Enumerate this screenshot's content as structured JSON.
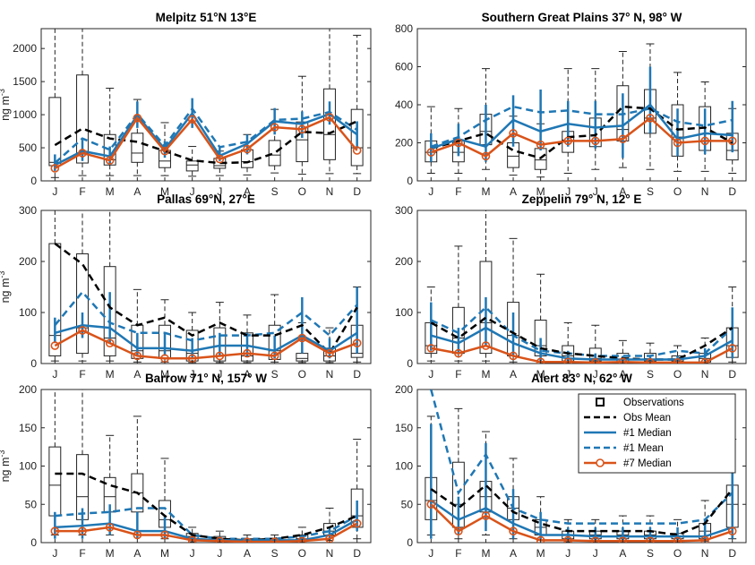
{
  "months": [
    "J",
    "F",
    "M",
    "A",
    "M",
    "J",
    "J",
    "A",
    "S",
    "O",
    "N",
    "D"
  ],
  "colors": {
    "obs": "#000000",
    "m1": "#1f77b4",
    "m7": "#d95319"
  },
  "legend": {
    "entries": [
      "Observations",
      "Obs Mean",
      "#1 Median",
      "#1 Mean",
      "#7 Median"
    ]
  },
  "chart_data": [
    {
      "type": "box-line",
      "title": "Melpitz 51°N  13°E",
      "ylabel": "ng m",
      "ylabel_exp": "-3",
      "ylim": [
        0,
        2300
      ],
      "yticks": [
        0,
        500,
        1000,
        1500,
        2000
      ],
      "box": {
        "q1": [
          230,
          270,
          240,
          280,
          200,
          150,
          190,
          200,
          230,
          290,
          320,
          230
        ],
        "median": [
          280,
          420,
          320,
          420,
          300,
          240,
          230,
          290,
          390,
          620,
          700,
          500
        ],
        "q3": [
          1260,
          1600,
          700,
          720,
          460,
          300,
          340,
          470,
          610,
          890,
          1390,
          1080
        ],
        "wlo": [
          50,
          80,
          80,
          80,
          80,
          70,
          80,
          90,
          120,
          100,
          110,
          110
        ],
        "whi": [
          2300,
          2300,
          1400,
          1230,
          880,
          520,
          450,
          700,
          1080,
          1580,
          2300,
          2200
        ]
      },
      "obs_mean": [
        540,
        790,
        640,
        590,
        450,
        310,
        270,
        280,
        420,
        740,
        720,
        900
      ],
      "m1_median": [
        240,
        450,
        370,
        990,
        480,
        1020,
        380,
        560,
        900,
        860,
        1010,
        700
      ],
      "m1_range": [
        [
          150,
          400
        ],
        [
          300,
          620
        ],
        [
          250,
          520
        ],
        [
          800,
          1200
        ],
        [
          350,
          600
        ],
        [
          800,
          1250
        ],
        [
          300,
          500
        ],
        [
          400,
          700
        ],
        [
          700,
          1100
        ],
        [
          650,
          1050
        ],
        [
          850,
          1200
        ],
        [
          500,
          900
        ]
      ],
      "m1_mean": [
        270,
        640,
        470,
        1010,
        530,
        1090,
        510,
        590,
        920,
        940,
        1040,
        770
      ],
      "m7_median": [
        190,
        420,
        310,
        950,
        450,
        930,
        330,
        480,
        810,
        780,
        960,
        460
      ]
    },
    {
      "type": "box-line",
      "title": "Southern Great Plains 37° N, 98° W",
      "ylabel": "",
      "ylabel_exp": "",
      "ylim": [
        0,
        800
      ],
      "yticks": [
        0,
        200,
        400,
        600,
        800
      ],
      "box": {
        "q1": [
          100,
          100,
          190,
          70,
          60,
          150,
          180,
          210,
          250,
          130,
          160,
          110
        ],
        "median": [
          150,
          150,
          260,
          130,
          110,
          210,
          210,
          270,
          330,
          230,
          210,
          160
        ],
        "q3": [
          210,
          210,
          350,
          200,
          170,
          260,
          330,
          500,
          480,
          400,
          390,
          250
        ],
        "wlo": [
          40,
          40,
          60,
          30,
          20,
          40,
          60,
          70,
          60,
          50,
          50,
          40
        ],
        "whi": [
          390,
          380,
          590,
          340,
          300,
          590,
          590,
          680,
          720,
          570,
          520,
          380
        ]
      },
      "obs_mean": [
        170,
        210,
        250,
        160,
        120,
        230,
        240,
        390,
        380,
        270,
        280,
        200
      ],
      "m1_median": [
        170,
        220,
        180,
        320,
        260,
        300,
        280,
        290,
        400,
        220,
        250,
        240
      ],
      "m1_range": [
        [
          100,
          250
        ],
        [
          130,
          300
        ],
        [
          100,
          400
        ],
        [
          180,
          450
        ],
        [
          160,
          480
        ],
        [
          180,
          420
        ],
        [
          170,
          420
        ],
        [
          120,
          460
        ],
        [
          250,
          600
        ],
        [
          130,
          380
        ],
        [
          140,
          380
        ],
        [
          150,
          420
        ]
      ],
      "m1_mean": [
        180,
        230,
        320,
        390,
        360,
        370,
        350,
        350,
        380,
        310,
        290,
        320
      ],
      "m7_median": [
        150,
        200,
        130,
        250,
        190,
        210,
        210,
        220,
        330,
        200,
        210,
        210
      ]
    },
    {
      "type": "box-line",
      "title": "Pallas 69°N, 27°E",
      "ylabel": "ng m",
      "ylabel_exp": "-3",
      "ylim": [
        0,
        300
      ],
      "yticks": [
        0,
        100,
        200,
        300
      ],
      "box": {
        "q1": [
          15,
          20,
          15,
          10,
          10,
          5,
          5,
          5,
          8,
          5,
          5,
          12
        ],
        "median": [
          55,
          70,
          50,
          25,
          25,
          20,
          15,
          15,
          25,
          10,
          15,
          20
        ],
        "q3": [
          235,
          215,
          190,
          75,
          75,
          65,
          70,
          60,
          75,
          20,
          30,
          75
        ],
        "wlo": [
          5,
          5,
          5,
          3,
          3,
          2,
          2,
          2,
          3,
          2,
          2,
          3
        ],
        "whi": [
          300,
          300,
          300,
          145,
          125,
          100,
          120,
          95,
          135,
          80,
          70,
          150
        ]
      },
      "obs_mean": [
        235,
        195,
        110,
        75,
        90,
        55,
        80,
        55,
        55,
        75,
        20,
        110
      ],
      "m1_median": [
        60,
        75,
        70,
        30,
        30,
        25,
        35,
        35,
        25,
        55,
        25,
        60
      ],
      "m1_range": [
        [
          40,
          90
        ],
        [
          50,
          100
        ],
        [
          40,
          140
        ],
        [
          15,
          60
        ],
        [
          15,
          60
        ],
        [
          10,
          50
        ],
        [
          15,
          60
        ],
        [
          15,
          60
        ],
        [
          10,
          55
        ],
        [
          20,
          130
        ],
        [
          10,
          50
        ],
        [
          20,
          150
        ]
      ],
      "m1_mean": [
        75,
        140,
        80,
        60,
        60,
        45,
        55,
        55,
        60,
        100,
        55,
        115
      ],
      "m7_median": [
        35,
        65,
        40,
        15,
        10,
        10,
        15,
        20,
        15,
        50,
        20,
        40
      ]
    },
    {
      "type": "box-line",
      "title": "Zeppelin 79° N, 12° E",
      "ylabel": "",
      "ylabel_exp": "",
      "ylim": [
        0,
        300
      ],
      "yticks": [
        0,
        100,
        200,
        300
      ],
      "box": {
        "q1": [
          20,
          20,
          20,
          15,
          15,
          5,
          5,
          3,
          3,
          2,
          3,
          12
        ],
        "median": [
          35,
          50,
          80,
          55,
          35,
          15,
          10,
          8,
          5,
          5,
          10,
          35
        ],
        "q3": [
          80,
          110,
          200,
          120,
          85,
          35,
          30,
          20,
          20,
          15,
          20,
          70
        ],
        "wlo": [
          5,
          5,
          5,
          3,
          3,
          2,
          2,
          1,
          1,
          1,
          1,
          3
        ],
        "whi": [
          150,
          230,
          300,
          245,
          175,
          80,
          75,
          45,
          40,
          35,
          50,
          150
        ]
      },
      "obs_mean": [
        80,
        50,
        90,
        60,
        30,
        20,
        15,
        10,
        8,
        8,
        35,
        70
      ],
      "m1_median": [
        55,
        40,
        70,
        40,
        20,
        10,
        8,
        8,
        8,
        8,
        15,
        45
      ],
      "m1_range": [
        [
          25,
          120
        ],
        [
          20,
          70
        ],
        [
          35,
          130
        ],
        [
          15,
          100
        ],
        [
          5,
          50
        ],
        [
          3,
          25
        ],
        [
          2,
          20
        ],
        [
          2,
          15
        ],
        [
          2,
          15
        ],
        [
          2,
          15
        ],
        [
          5,
          30
        ],
        [
          10,
          110
        ]
      ],
      "m1_mean": [
        85,
        60,
        110,
        55,
        25,
        20,
        15,
        15,
        15,
        25,
        20,
        70
      ],
      "m7_median": [
        30,
        20,
        35,
        15,
        3,
        3,
        2,
        3,
        2,
        2,
        2,
        30
      ]
    },
    {
      "type": "box-line",
      "title": "Barrow 71° N, 157° W",
      "ylabel": "ng m",
      "ylabel_exp": "-3",
      "ylim": [
        0,
        200
      ],
      "yticks": [
        0,
        50,
        100,
        150,
        200
      ],
      "box": {
        "q1": [
          35,
          30,
          40,
          40,
          20,
          5,
          3,
          2,
          2,
          3,
          10,
          20
        ],
        "median": [
          75,
          60,
          60,
          65,
          30,
          8,
          5,
          3,
          3,
          5,
          15,
          35
        ],
        "q3": [
          125,
          115,
          85,
          90,
          55,
          12,
          8,
          5,
          5,
          10,
          25,
          70
        ],
        "wlo": [
          10,
          10,
          10,
          10,
          5,
          1,
          1,
          1,
          1,
          1,
          3,
          5
        ],
        "whi": [
          200,
          200,
          140,
          165,
          110,
          20,
          15,
          10,
          10,
          20,
          45,
          135
        ]
      },
      "obs_mean": [
        90,
        90,
        75,
        65,
        35,
        10,
        5,
        3,
        5,
        10,
        20,
        35
      ],
      "m1_median": [
        20,
        22,
        25,
        15,
        15,
        5,
        3,
        3,
        3,
        3,
        10,
        30
      ],
      "m1_range": [
        [
          5,
          40
        ],
        [
          5,
          45
        ],
        [
          10,
          50
        ],
        [
          5,
          40
        ],
        [
          5,
          35
        ],
        [
          1,
          10
        ],
        [
          1,
          8
        ],
        [
          1,
          6
        ],
        [
          1,
          6
        ],
        [
          1,
          8
        ],
        [
          5,
          20
        ],
        [
          15,
          55
        ]
      ],
      "m1_mean": [
        35,
        38,
        40,
        45,
        45,
        10,
        5,
        5,
        5,
        8,
        15,
        35
      ],
      "m7_median": [
        15,
        15,
        20,
        10,
        10,
        3,
        2,
        1,
        1,
        2,
        5,
        25
      ]
    },
    {
      "type": "box-line",
      "title": "Alert 83° N, 62° W",
      "ylabel": "",
      "ylabel_exp": "",
      "ylim": [
        0,
        200
      ],
      "yticks": [
        0,
        50,
        100,
        150,
        200
      ],
      "box": {
        "q1": [
          30,
          20,
          40,
          30,
          10,
          5,
          5,
          5,
          5,
          5,
          5,
          20
        ],
        "median": [
          55,
          50,
          60,
          45,
          20,
          10,
          10,
          10,
          10,
          8,
          15,
          50
        ],
        "q3": [
          85,
          105,
          80,
          60,
          30,
          15,
          15,
          15,
          15,
          12,
          25,
          75
        ],
        "wlo": [
          10,
          5,
          10,
          5,
          3,
          1,
          1,
          1,
          1,
          1,
          2,
          5
        ],
        "whi": [
          165,
          175,
          145,
          110,
          60,
          30,
          30,
          35,
          35,
          30,
          55,
          135
        ]
      },
      "obs_mean": [
        70,
        45,
        75,
        40,
        25,
        15,
        15,
        15,
        15,
        10,
        25,
        70
      ],
      "m1_median": [
        55,
        30,
        45,
        25,
        10,
        10,
        8,
        8,
        8,
        8,
        8,
        20
      ],
      "m1_range": [
        [
          5,
          155
        ],
        [
          10,
          60
        ],
        [
          15,
          130
        ],
        [
          5,
          70
        ],
        [
          2,
          40
        ],
        [
          1,
          20
        ],
        [
          1,
          20
        ],
        [
          1,
          20
        ],
        [
          1,
          20
        ],
        [
          1,
          20
        ],
        [
          1,
          30
        ],
        [
          5,
          100
        ]
      ],
      "m1_mean": [
        200,
        65,
        115,
        45,
        30,
        25,
        25,
        25,
        25,
        25,
        30,
        65
      ],
      "m7_median": [
        50,
        15,
        35,
        15,
        3,
        3,
        2,
        2,
        2,
        2,
        3,
        15
      ]
    }
  ]
}
